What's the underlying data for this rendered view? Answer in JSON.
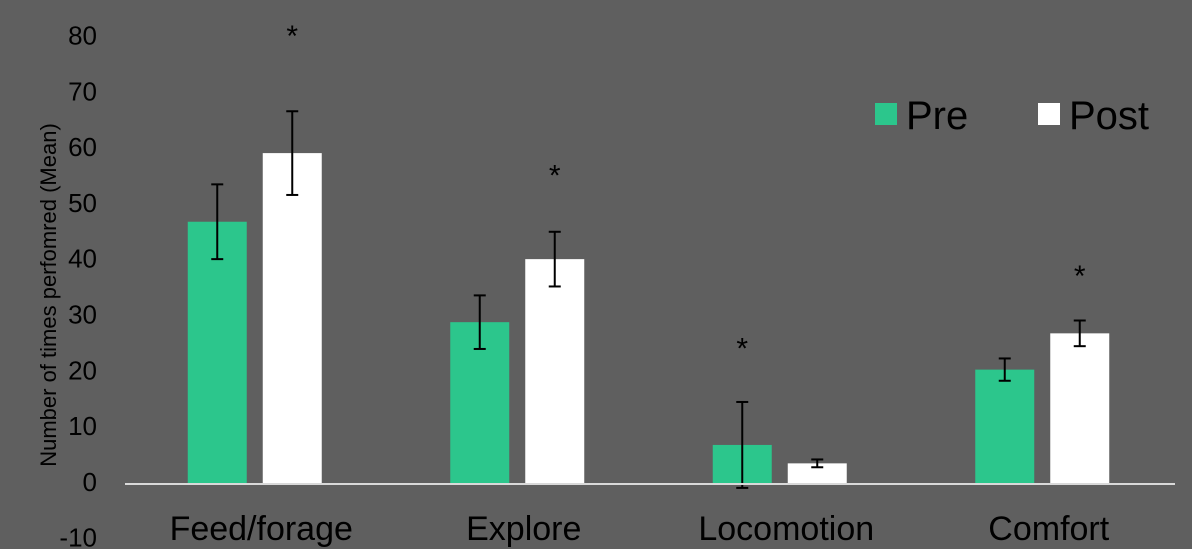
{
  "chart_data": {
    "type": "bar",
    "categories": [
      "Feed/forage",
      "Explore",
      "Locomotion",
      "Comfort"
    ],
    "series": [
      {
        "name": "Pre",
        "color": "#2cc68c",
        "values": [
          47,
          29,
          7,
          20.5
        ],
        "error": [
          6.7,
          4.8,
          7.7,
          2
        ]
      },
      {
        "name": "Post",
        "color": "#ffffff",
        "values": [
          59.3,
          40.3,
          3.7,
          27
        ],
        "error": [
          7.5,
          4.9,
          0.7,
          2.3
        ]
      }
    ],
    "significance": [
      {
        "category": "Feed/forage",
        "label": "*",
        "y": 81
      },
      {
        "category": "Explore",
        "label": "*",
        "y": 56
      },
      {
        "category": "Locomotion",
        "label": "*",
        "y": 25
      },
      {
        "category": "Comfort",
        "label": "*",
        "y": 38
      }
    ],
    "ylabel": "Number of times perfomred (Mean)",
    "ylim": [
      -10,
      80
    ],
    "yticks": [
      "80",
      "70",
      "60",
      "50",
      "40",
      "30",
      "20",
      "10",
      "0",
      "-10"
    ],
    "legend": {
      "position": "top-right",
      "entries": [
        "Pre",
        "Post"
      ]
    },
    "grid": false,
    "background": "#5f5f5f"
  }
}
